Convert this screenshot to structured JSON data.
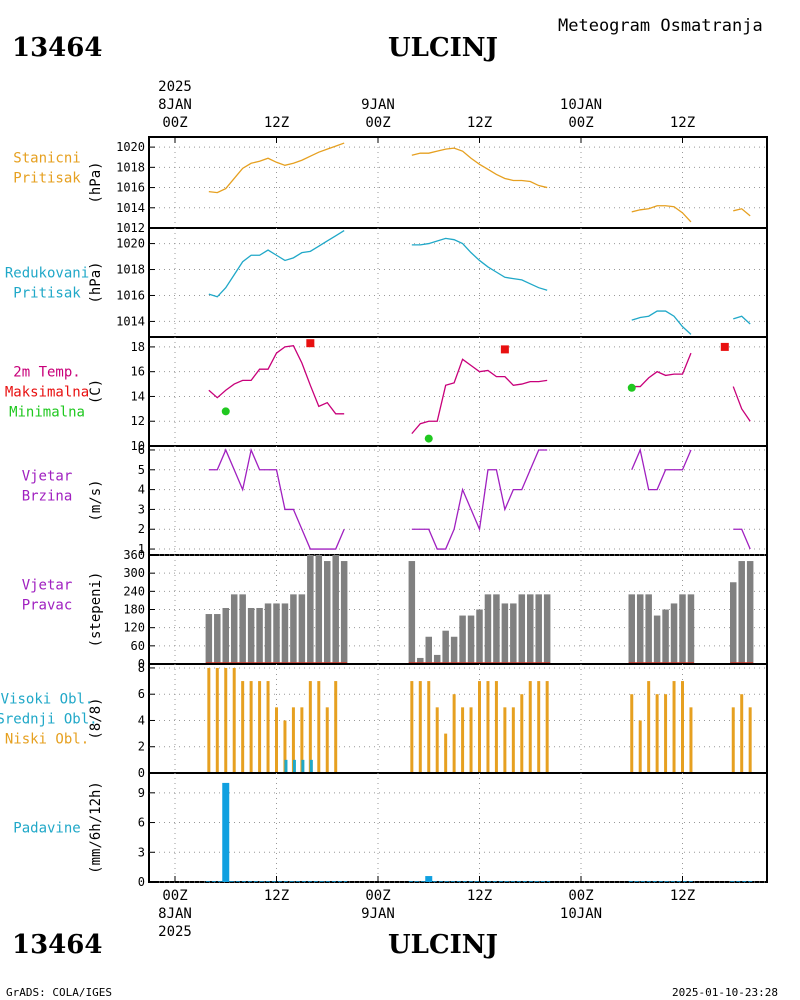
{
  "header": {
    "station_id": "13464",
    "station_name": "ULCINJ",
    "subtitle": "Meteogram Osmatranja"
  },
  "footer": {
    "station_id": "13464",
    "station_name": "ULCINJ",
    "credit": "GrADS: COLA/IGES",
    "timestamp": "2025-01-10-23:28"
  },
  "time_axis": {
    "start": "2025-01-08 00Z",
    "end": "2025-01-10 23Z",
    "ticks": [
      {
        "hour": 0,
        "line1": "00Z",
        "line2": "8JAN",
        "line3": "2025"
      },
      {
        "hour": 12,
        "line1": "12Z",
        "line2": "",
        "line3": ""
      },
      {
        "hour": 24,
        "line1": "00Z",
        "line2": "9JAN",
        "line3": ""
      },
      {
        "hour": 36,
        "line1": "12Z",
        "line2": "",
        "line3": ""
      },
      {
        "hour": 48,
        "line1": "00Z",
        "line2": "10JAN",
        "line3": ""
      },
      {
        "hour": 60,
        "line1": "12Z",
        "line2": "",
        "line3": ""
      }
    ]
  },
  "chart_data": [
    {
      "type": "line",
      "panel": "station-pressure",
      "labels": [
        {
          "text": "Stanicni",
          "color": "#e6a020"
        },
        {
          "text": "Pritisak",
          "color": "#e6a020"
        }
      ],
      "ylabel": "(hPa)",
      "ylim": [
        1012,
        1021
      ],
      "yticks": [
        1012,
        1014,
        1016,
        1018,
        1020
      ],
      "series": [
        {
          "color": "#e6a020",
          "x": [
            4,
            5,
            6,
            7,
            8,
            9,
            10,
            11,
            12,
            13,
            14,
            15,
            16,
            17,
            18,
            19,
            20
          ],
          "y": [
            1015.6,
            1015.5,
            1015.9,
            1016.9,
            1017.9,
            1018.4,
            1018.6,
            1018.9,
            1018.5,
            1018.2,
            1018.4,
            1018.7,
            1019.1,
            1019.5,
            1019.8,
            1020.1,
            1020.4
          ]
        },
        {
          "color": "#e6a020",
          "x": [
            28,
            29,
            30,
            31,
            32,
            33,
            34,
            35,
            36,
            37,
            38,
            39,
            40,
            41,
            42,
            43,
            44
          ],
          "y": [
            1019.2,
            1019.4,
            1019.4,
            1019.6,
            1019.8,
            1019.9,
            1019.6,
            1018.9,
            1018.3,
            1017.8,
            1017.3,
            1016.9,
            1016.7,
            1016.7,
            1016.6,
            1016.2,
            1016.0
          ]
        },
        {
          "color": "#e6a020",
          "x": [
            54,
            55,
            56,
            57,
            58,
            59,
            60,
            61
          ],
          "y": [
            1013.6,
            1013.8,
            1013.9,
            1014.2,
            1014.2,
            1014.1,
            1013.5,
            1012.6
          ]
        },
        {
          "color": "#e6a020",
          "x": [
            66,
            67,
            68
          ],
          "y": [
            1013.7,
            1013.9,
            1013.2
          ]
        }
      ]
    },
    {
      "type": "line",
      "panel": "reduced-pressure",
      "labels": [
        {
          "text": "Redukovani",
          "color": "#20a8c8"
        },
        {
          "text": "Pritisak",
          "color": "#20a8c8"
        }
      ],
      "ylabel": "(hPa)",
      "ylim": [
        1012.8,
        1021.2
      ],
      "yticks": [
        1014,
        1016,
        1018,
        1020
      ],
      "series": [
        {
          "color": "#20a8c8",
          "x": [
            4,
            5,
            6,
            7,
            8,
            9,
            10,
            11,
            12,
            13,
            14,
            15,
            16,
            17,
            18,
            19,
            20
          ],
          "y": [
            1016.1,
            1015.9,
            1016.6,
            1017.6,
            1018.6,
            1019.1,
            1019.1,
            1019.5,
            1019.1,
            1018.7,
            1018.9,
            1019.3,
            1019.4,
            1019.8,
            1020.2,
            1020.6,
            1021.0
          ]
        },
        {
          "color": "#20a8c8",
          "x": [
            28,
            29,
            30,
            31,
            32,
            33,
            34,
            35,
            36,
            37,
            38,
            39,
            40,
            41,
            42,
            43,
            44
          ],
          "y": [
            1019.9,
            1019.9,
            1020.0,
            1020.2,
            1020.4,
            1020.3,
            1020.0,
            1019.3,
            1018.7,
            1018.2,
            1017.8,
            1017.4,
            1017.3,
            1017.2,
            1016.9,
            1016.6,
            1016.4
          ]
        },
        {
          "color": "#20a8c8",
          "x": [
            54,
            55,
            56,
            57,
            58,
            59,
            60,
            61
          ],
          "y": [
            1014.1,
            1014.3,
            1014.4,
            1014.8,
            1014.8,
            1014.4,
            1013.6,
            1013.0
          ]
        },
        {
          "color": "#20a8c8",
          "x": [
            66,
            67,
            68
          ],
          "y": [
            1014.2,
            1014.4,
            1013.8
          ]
        }
      ]
    },
    {
      "type": "line",
      "panel": "temperature",
      "labels": [
        {
          "text": "2m Temp.",
          "color": "#c8007a"
        },
        {
          "text": "Maksimalna",
          "color": "#e81010"
        },
        {
          "text": "Minimalna",
          "color": "#20c820"
        }
      ],
      "ylabel": "(C)",
      "ylim": [
        10,
        18.8
      ],
      "yticks": [
        10,
        12,
        14,
        16,
        18
      ],
      "series": [
        {
          "color": "#c8007a",
          "x": [
            4,
            5,
            6,
            7,
            8,
            9,
            10,
            11,
            12,
            13,
            14,
            15,
            16,
            17,
            18,
            19,
            20
          ],
          "y": [
            14.5,
            13.9,
            14.5,
            15.0,
            15.3,
            15.3,
            16.2,
            16.2,
            17.5,
            18.0,
            18.1,
            16.7,
            14.9,
            13.2,
            13.5,
            12.6,
            12.6
          ]
        },
        {
          "color": "#c8007a",
          "x": [
            28,
            29,
            30,
            31,
            32,
            33,
            34,
            35,
            36,
            37,
            38,
            39,
            40,
            41,
            42,
            43,
            44
          ],
          "y": [
            11.0,
            11.8,
            12.0,
            12.0,
            14.9,
            15.1,
            17.0,
            16.5,
            16.0,
            16.1,
            15.6,
            15.6,
            14.9,
            15.0,
            15.2,
            15.2,
            15.3
          ]
        },
        {
          "color": "#c8007a",
          "x": [
            54,
            55,
            56,
            57,
            58,
            59,
            60,
            61
          ],
          "y": [
            14.8,
            14.8,
            15.5,
            16.0,
            15.7,
            15.8,
            15.8,
            17.5
          ]
        },
        {
          "color": "#c8007a",
          "x": [
            66,
            67,
            68
          ],
          "y": [
            14.8,
            13.0,
            12.0
          ]
        }
      ],
      "max_points": {
        "color": "#e81010",
        "x": [
          16,
          39,
          65
        ],
        "y": [
          18.3,
          17.8,
          18.0
        ]
      },
      "min_points": {
        "color": "#20c820",
        "x": [
          6,
          30,
          54
        ],
        "y": [
          12.8,
          10.6,
          14.7
        ]
      }
    },
    {
      "type": "line",
      "panel": "wind-speed",
      "labels": [
        {
          "text": "Vjetar",
          "color": "#a020c0"
        },
        {
          "text": "Brzina",
          "color": "#a020c0"
        }
      ],
      "ylabel": "(m/s)",
      "ylim": [
        0.7,
        6.2
      ],
      "yticks": [
        1,
        2,
        3,
        4,
        5,
        6
      ],
      "series": [
        {
          "color": "#a020c0",
          "x": [
            4,
            5,
            6,
            7,
            8,
            9,
            10,
            11,
            12,
            13,
            14,
            15,
            16,
            17,
            18,
            19,
            20
          ],
          "y": [
            5,
            5,
            6,
            5,
            4,
            6,
            5,
            5,
            5,
            3,
            3,
            2,
            1,
            1,
            1,
            1,
            2
          ]
        },
        {
          "color": "#a020c0",
          "x": [
            28,
            29,
            30,
            31,
            32,
            33,
            34,
            35,
            36,
            37,
            38,
            39,
            40,
            41,
            42,
            43,
            44
          ],
          "y": [
            2,
            2,
            2,
            1,
            1,
            2,
            4,
            3,
            2,
            5,
            5,
            3,
            4,
            4,
            5,
            6,
            6
          ]
        },
        {
          "color": "#a020c0",
          "x": [
            54,
            55,
            56,
            57,
            58,
            59,
            60,
            61
          ],
          "y": [
            5,
            6,
            4,
            4,
            5,
            5,
            5,
            6
          ]
        },
        {
          "color": "#a020c0",
          "x": [
            66,
            67,
            68
          ],
          "y": [
            2,
            2,
            1
          ]
        }
      ]
    },
    {
      "type": "bar",
      "panel": "wind-direction",
      "labels": [
        {
          "text": "Vjetar",
          "color": "#a020c0"
        },
        {
          "text": "Pravac",
          "color": "#a020c0"
        }
      ],
      "ylabel": "(stepeni)",
      "ylim": [
        0,
        360
      ],
      "yticks": [
        0,
        60,
        120,
        180,
        240,
        300,
        360
      ],
      "bar_color": "#808080",
      "baseline_color": "#d03020",
      "x": [
        4,
        5,
        6,
        7,
        8,
        9,
        10,
        11,
        12,
        13,
        14,
        15,
        16,
        17,
        18,
        19,
        20,
        28,
        29,
        30,
        31,
        32,
        33,
        34,
        35,
        36,
        37,
        38,
        39,
        40,
        41,
        42,
        43,
        44,
        54,
        55,
        56,
        57,
        58,
        59,
        60,
        61,
        66,
        67,
        68
      ],
      "values": [
        165,
        165,
        185,
        230,
        230,
        185,
        185,
        200,
        200,
        200,
        230,
        230,
        360,
        360,
        340,
        360,
        340,
        340,
        20,
        90,
        30,
        110,
        90,
        160,
        160,
        180,
        230,
        230,
        200,
        200,
        230,
        230,
        230,
        230,
        230,
        230,
        230,
        160,
        180,
        200,
        230,
        230,
        270,
        340,
        340
      ]
    },
    {
      "type": "bar",
      "panel": "cloud-cover",
      "labels": [
        {
          "text": "Visoki Obl.",
          "color": "#20a8c8"
        },
        {
          "text": "Srednji Obl.",
          "color": "#20a8c8"
        },
        {
          "text": "Niski Obl.",
          "color": "#e6a020"
        }
      ],
      "ylabel": "(8/8)",
      "ylim": [
        0,
        8.3
      ],
      "yticks": [
        0,
        2,
        4,
        6,
        8
      ],
      "x": [
        4,
        5,
        6,
        7,
        8,
        9,
        10,
        11,
        12,
        13,
        14,
        15,
        16,
        17,
        18,
        19,
        20,
        28,
        29,
        30,
        31,
        32,
        33,
        34,
        35,
        36,
        37,
        38,
        39,
        40,
        41,
        42,
        43,
        44,
        54,
        55,
        56,
        57,
        58,
        59,
        60,
        61,
        66,
        67,
        68
      ],
      "series": [
        {
          "name": "Niski Obl.",
          "color": "#e6a020",
          "values": [
            8,
            8,
            8,
            8,
            7,
            7,
            7,
            7,
            5,
            4,
            5,
            5,
            7,
            7,
            5,
            7,
            0,
            7,
            7,
            7,
            5,
            3,
            6,
            5,
            5,
            7,
            7,
            7,
            5,
            5,
            6,
            7,
            7,
            7,
            6,
            4,
            7,
            6,
            6,
            7,
            7,
            5,
            5,
            6,
            5
          ]
        },
        {
          "name": "Srednji Obl.",
          "color": "#20a8c8",
          "values": [
            0,
            0,
            0,
            0,
            0,
            0,
            0,
            0,
            0,
            1,
            1,
            1,
            1,
            0,
            0,
            0,
            0,
            0,
            0,
            0,
            0,
            0,
            0,
            0,
            0,
            0,
            0,
            0,
            0,
            0,
            0,
            0,
            0,
            0,
            0,
            0,
            0,
            0,
            0,
            0,
            0,
            0,
            0,
            0,
            0
          ]
        }
      ]
    },
    {
      "type": "bar",
      "panel": "precipitation",
      "labels": [
        {
          "text": "Padavine",
          "color": "#20a8c8"
        }
      ],
      "ylabel": "(mm/6h/12h)",
      "ylim": [
        0,
        11
      ],
      "yticks": [
        0,
        3,
        6,
        9
      ],
      "bar_color": "#10a0e0",
      "x": [
        6,
        30
      ],
      "values": [
        10,
        0.6
      ]
    }
  ]
}
